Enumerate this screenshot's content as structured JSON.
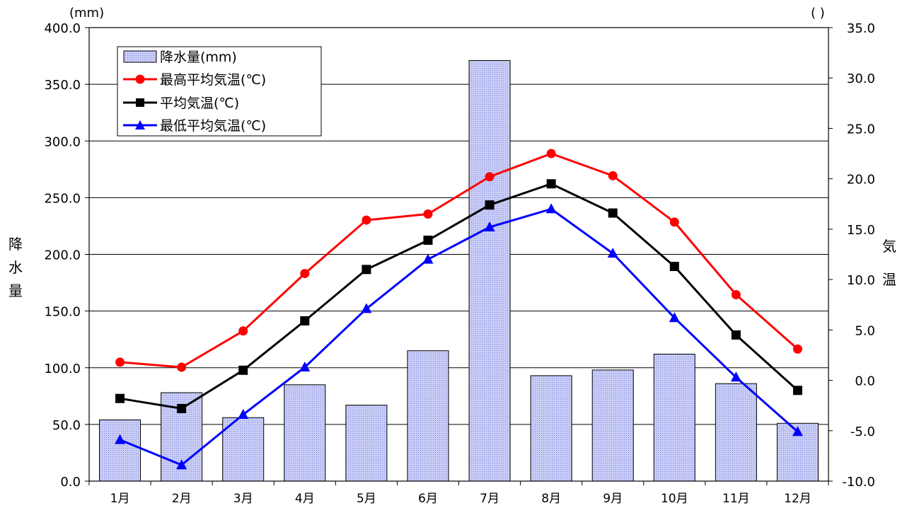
{
  "chart_data": {
    "type": "bar+line",
    "categories": [
      "1月",
      "2月",
      "3月",
      "4月",
      "5月",
      "6月",
      "7月",
      "8月",
      "9月",
      "10月",
      "11月",
      "12月"
    ],
    "left_axis": {
      "label_chars": [
        "降",
        "水",
        "量"
      ],
      "unit": "(mm)",
      "ylim": [
        0,
        400
      ],
      "ticks": [
        "0.0",
        "50.0",
        "100.0",
        "150.0",
        "200.0",
        "250.0",
        "300.0",
        "350.0",
        "400.0"
      ]
    },
    "right_axis": {
      "label_chars": [
        "気",
        "温"
      ],
      "unit": "(  )",
      "ylim": [
        -10,
        35
      ],
      "ticks": [
        "-10.0",
        "-5.0",
        "0.0",
        "5.0",
        "10.0",
        "15.0",
        "20.0",
        "25.0",
        "30.0",
        "35.0"
      ]
    },
    "precip": {
      "name": "降水量(mm)",
      "axis": "left",
      "color": "#b8bdf2",
      "values": [
        54,
        78,
        56,
        85,
        67,
        115,
        371,
        93,
        98,
        112,
        86,
        51
      ]
    },
    "series": [
      {
        "name": "最高平均気温(℃)",
        "axis": "right",
        "color": "#ff0000",
        "marker": "circle",
        "values": [
          1.8,
          1.3,
          4.9,
          10.6,
          15.9,
          16.5,
          20.2,
          22.5,
          20.3,
          15.7,
          8.5,
          3.1
        ]
      },
      {
        "name": "平均気温(℃)",
        "axis": "right",
        "color": "#000000",
        "marker": "square",
        "values": [
          -1.8,
          -2.8,
          1.0,
          5.9,
          11.0,
          13.9,
          17.4,
          19.5,
          16.6,
          11.3,
          4.5,
          -1.0
        ]
      },
      {
        "name": "最低平均気温(℃)",
        "axis": "right",
        "color": "#0000ff",
        "marker": "triangle",
        "values": [
          -5.9,
          -8.4,
          -3.4,
          1.3,
          7.1,
          12.0,
          15.2,
          17.0,
          12.6,
          6.2,
          0.3,
          -5.1
        ]
      }
    ],
    "grid": true,
    "legend_position": "top-left"
  }
}
